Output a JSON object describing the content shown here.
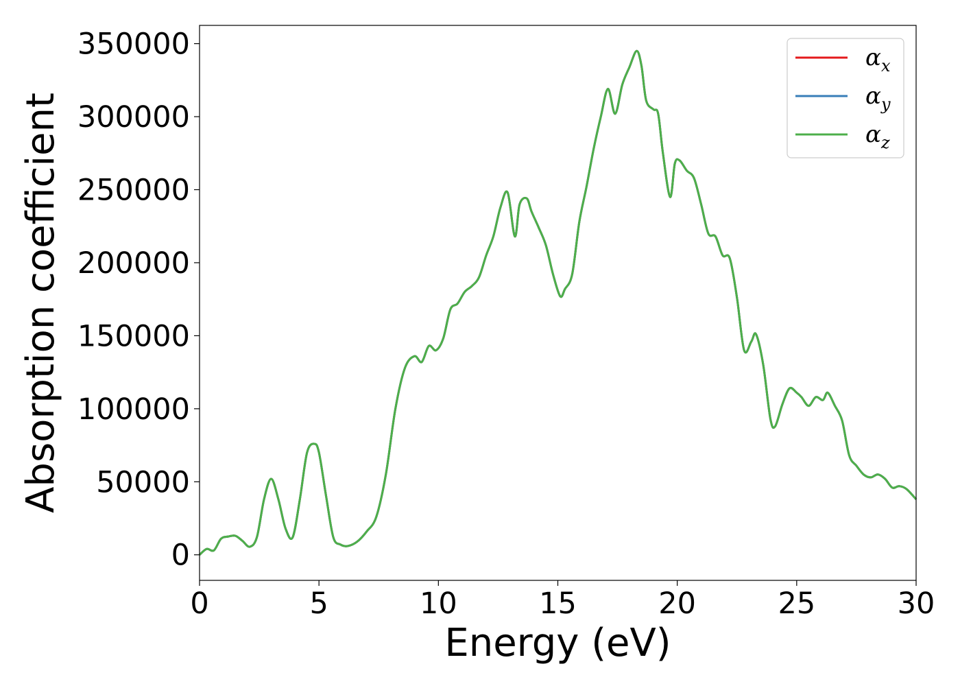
{
  "chart_data": {
    "type": "line",
    "xlabel": "Energy (eV)",
    "ylabel": "Absorption coefficient",
    "xlim": [
      0,
      30
    ],
    "ylim": [
      -17500,
      362500
    ],
    "xticks": [
      0,
      5,
      10,
      15,
      20,
      25,
      30
    ],
    "xtick_labels": [
      "0",
      "5",
      "10",
      "15",
      "20",
      "25",
      "30"
    ],
    "yticks": [
      0,
      50000,
      100000,
      150000,
      200000,
      250000,
      300000,
      350000
    ],
    "ytick_labels": [
      "0",
      "50000",
      "100000",
      "150000",
      "200000",
      "250000",
      "300000",
      "350000"
    ],
    "grid": false,
    "legend_position": "top-right",
    "x": [
      0,
      0.3,
      0.6,
      0.9,
      1.2,
      1.5,
      1.8,
      2.1,
      2.4,
      2.7,
      3.0,
      3.3,
      3.6,
      3.9,
      4.2,
      4.5,
      4.8,
      5.0,
      5.3,
      5.6,
      5.9,
      6.2,
      6.6,
      7.0,
      7.4,
      7.8,
      8.2,
      8.6,
      9.0,
      9.3,
      9.6,
      9.9,
      10.2,
      10.5,
      10.8,
      11.1,
      11.4,
      11.7,
      12.0,
      12.3,
      12.6,
      12.9,
      13.2,
      13.4,
      13.7,
      13.9,
      14.2,
      14.5,
      14.8,
      15.1,
      15.3,
      15.6,
      15.9,
      16.2,
      16.5,
      16.8,
      17.1,
      17.4,
      17.7,
      18.0,
      18.3,
      18.5,
      18.7,
      19.0,
      19.2,
      19.4,
      19.7,
      19.9,
      20.1,
      20.4,
      20.7,
      21.0,
      21.3,
      21.6,
      21.9,
      22.2,
      22.5,
      22.8,
      23.1,
      23.3,
      23.6,
      23.9,
      24.1,
      24.4,
      24.7,
      25.0,
      25.2,
      25.5,
      25.8,
      26.1,
      26.3,
      26.6,
      26.9,
      27.2,
      27.5,
      27.8,
      28.1,
      28.4,
      28.7,
      29.0,
      29.3,
      29.6,
      30.0
    ],
    "series": [
      {
        "name": "α_x",
        "color": "#e41a1c",
        "values": [
          0,
          4000,
          3000,
          11000,
          12500,
          13000,
          9500,
          5500,
          12000,
          38000,
          52000,
          38000,
          18000,
          12000,
          38000,
          70000,
          76000,
          70000,
          40000,
          12000,
          7000,
          6000,
          9000,
          16000,
          26000,
          55000,
          100000,
          128000,
          136000,
          132000,
          143000,
          140000,
          148000,
          168000,
          172000,
          180000,
          184000,
          190000,
          205000,
          218000,
          238000,
          248000,
          218000,
          240000,
          244000,
          235000,
          224000,
          212000,
          192000,
          177000,
          182000,
          192000,
          228000,
          252000,
          278000,
          300000,
          319000,
          302000,
          322000,
          334000,
          345000,
          335000,
          311000,
          305000,
          302000,
          275000,
          245000,
          268000,
          270000,
          263000,
          258000,
          240000,
          220000,
          218000,
          205000,
          203000,
          176000,
          140000,
          146000,
          151000,
          130000,
          93000,
          88000,
          103000,
          114000,
          111000,
          108000,
          102000,
          108000,
          106000,
          111000,
          102000,
          92000,
          68000,
          61000,
          55000,
          53000,
          55000,
          52000,
          46000,
          47000,
          45000,
          38000
        ]
      },
      {
        "name": "α_y",
        "color": "#377eb8",
        "values": [
          0,
          4000,
          3000,
          11000,
          12500,
          13000,
          9500,
          5500,
          12000,
          38000,
          52000,
          38000,
          18000,
          12000,
          38000,
          70000,
          76000,
          70000,
          40000,
          12000,
          7000,
          6000,
          9000,
          16000,
          26000,
          55000,
          100000,
          128000,
          136000,
          132000,
          143000,
          140000,
          148000,
          168000,
          172000,
          180000,
          184000,
          190000,
          205000,
          218000,
          238000,
          248000,
          218000,
          240000,
          244000,
          235000,
          224000,
          212000,
          192000,
          177000,
          182000,
          192000,
          228000,
          252000,
          278000,
          300000,
          319000,
          302000,
          322000,
          334000,
          345000,
          335000,
          311000,
          305000,
          302000,
          275000,
          245000,
          268000,
          270000,
          263000,
          258000,
          240000,
          220000,
          218000,
          205000,
          203000,
          176000,
          140000,
          146000,
          151000,
          130000,
          93000,
          88000,
          103000,
          114000,
          111000,
          108000,
          102000,
          108000,
          106000,
          111000,
          102000,
          92000,
          68000,
          61000,
          55000,
          53000,
          55000,
          52000,
          46000,
          47000,
          45000,
          38000
        ]
      },
      {
        "name": "α_z",
        "color": "#4daf4a",
        "values": [
          0,
          4000,
          3000,
          11000,
          12500,
          13000,
          9500,
          5500,
          12000,
          38000,
          52000,
          38000,
          18000,
          12000,
          38000,
          70000,
          76000,
          70000,
          40000,
          12000,
          7000,
          6000,
          9000,
          16000,
          26000,
          55000,
          100000,
          128000,
          136000,
          132000,
          143000,
          140000,
          148000,
          168000,
          172000,
          180000,
          184000,
          190000,
          205000,
          218000,
          238000,
          248000,
          218000,
          240000,
          244000,
          235000,
          224000,
          212000,
          192000,
          177000,
          182000,
          192000,
          228000,
          252000,
          278000,
          300000,
          319000,
          302000,
          322000,
          334000,
          345000,
          335000,
          311000,
          305000,
          302000,
          275000,
          245000,
          268000,
          270000,
          263000,
          258000,
          240000,
          220000,
          218000,
          205000,
          203000,
          176000,
          140000,
          146000,
          151000,
          130000,
          93000,
          88000,
          103000,
          114000,
          111000,
          108000,
          102000,
          108000,
          106000,
          111000,
          102000,
          92000,
          68000,
          61000,
          55000,
          53000,
          55000,
          52000,
          46000,
          47000,
          45000,
          38000
        ]
      }
    ],
    "legend": [
      {
        "symbol": "α",
        "subscript": "x",
        "color": "#e41a1c"
      },
      {
        "symbol": "α",
        "subscript": "y",
        "color": "#377eb8"
      },
      {
        "symbol": "α",
        "subscript": "z",
        "color": "#4daf4a"
      }
    ]
  }
}
